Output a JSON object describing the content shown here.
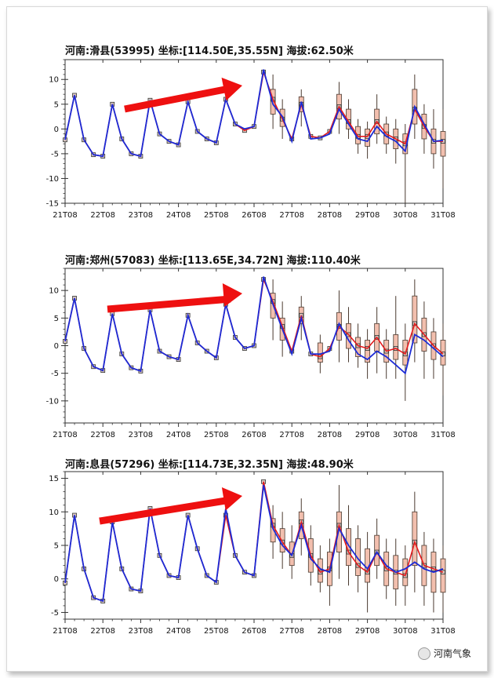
{
  "chart_data": [
    {
      "type": "line",
      "title": "河南:滑县(53995)  坐标:[114.50E,35.55N]  海拔:62.50米",
      "x_tick_labels": [
        "21T08",
        "22T08",
        "23T08",
        "24T08",
        "25T08",
        "26T08",
        "27T08",
        "28T08",
        "29T08",
        "30T08",
        "31T08"
      ],
      "y_ticks": [
        -15,
        -10,
        -5,
        0,
        5,
        10
      ],
      "ylim": [
        -15,
        14
      ],
      "x": [
        21.0,
        21.25,
        21.5,
        21.75,
        22.0,
        22.25,
        22.5,
        22.75,
        23.0,
        23.25,
        23.5,
        23.75,
        24.0,
        24.25,
        24.5,
        24.75,
        25.0,
        25.25,
        25.5,
        25.75,
        26.0,
        26.25,
        26.5,
        26.75,
        27.0,
        27.25,
        27.5,
        27.75,
        28.0,
        28.25,
        28.5,
        28.75,
        29.0,
        29.25,
        29.5,
        29.75,
        30.0,
        30.25,
        30.5,
        30.75,
        31.0
      ],
      "series": [
        {
          "values": [
            -2.2,
            6.8,
            -2.2,
            -5.2,
            -5.5,
            5.0,
            -2.0,
            -5.0,
            -5.5,
            5.8,
            -1.0,
            -2.5,
            -3.2,
            5.5,
            -0.5,
            -2.0,
            -2.8,
            6.0,
            1.0,
            -0.3,
            0.5,
            11.5,
            6.0,
            2.0,
            -2.0,
            5.0,
            -1.5,
            -1.8,
            -0.5,
            4.5,
            1.5,
            -1.5,
            -1.5,
            1.5,
            -1.0,
            -2.0,
            -3.0,
            4.0,
            0.5,
            -2.5,
            -2.5
          ]
        },
        {
          "values": [
            -2.2,
            6.8,
            -2.2,
            -5.2,
            -5.5,
            5.0,
            -2.0,
            -5.0,
            -5.5,
            5.8,
            -1.0,
            -2.5,
            -3.2,
            5.5,
            -0.5,
            -2.0,
            -2.8,
            6.0,
            1.0,
            0.0,
            0.5,
            12.0,
            5.0,
            2.5,
            -2.5,
            5.5,
            -2.0,
            -1.8,
            -1.0,
            4.0,
            1.0,
            -2.0,
            -2.5,
            0.5,
            -1.5,
            -2.5,
            -4.5,
            4.5,
            1.0,
            -2.5,
            -2.3
          ]
        }
      ],
      "boxes": [
        {
          "x": 26.5,
          "q1": 3.0,
          "q3": 8.0,
          "lo": 0.0,
          "hi": 11.0
        },
        {
          "x": 26.75,
          "q1": 0.5,
          "q3": 4.0,
          "lo": -2.0,
          "hi": 6.0
        },
        {
          "x": 27.25,
          "q1": 3.5,
          "q3": 6.5,
          "lo": 0.5,
          "hi": 8.0
        },
        {
          "x": 28.25,
          "q1": 2.0,
          "q3": 7.0,
          "lo": -1.0,
          "hi": 9.5
        },
        {
          "x": 28.5,
          "q1": 0.0,
          "q3": 4.0,
          "lo": -2.0,
          "hi": 6.0
        },
        {
          "x": 28.75,
          "q1": -3.0,
          "q3": 0.5,
          "lo": -5.0,
          "hi": 2.0
        },
        {
          "x": 29.0,
          "q1": -3.5,
          "q3": 0.0,
          "lo": -6.0,
          "hi": 1.5
        },
        {
          "x": 29.25,
          "q1": -1.0,
          "q3": 4.0,
          "lo": -3.0,
          "hi": 7.0
        },
        {
          "x": 29.5,
          "q1": -3.0,
          "q3": 1.0,
          "lo": -5.0,
          "hi": 2.5
        },
        {
          "x": 29.75,
          "q1": -4.0,
          "q3": 0.0,
          "lo": -7.0,
          "hi": 2.0
        },
        {
          "x": 30.0,
          "q1": -5.0,
          "q3": -1.0,
          "lo": -15.0,
          "hi": 1.0
        },
        {
          "x": 30.25,
          "q1": 1.0,
          "q3": 8.0,
          "lo": -2.0,
          "hi": 11.0
        },
        {
          "x": 30.5,
          "q1": -2.0,
          "q3": 3.0,
          "lo": -5.0,
          "hi": 5.0
        },
        {
          "x": 30.75,
          "q1": -5.0,
          "q3": 0.0,
          "lo": -8.0,
          "hi": 4.0
        },
        {
          "x": 31.0,
          "q1": -5.5,
          "q3": -0.5,
          "lo": -12.0,
          "hi": 4.0
        }
      ]
    },
    {
      "type": "line",
      "title": "河南:郑州(57083)  坐标:[113.65E,34.72N]  海拔:110.40米",
      "x_tick_labels": [
        "21T08",
        "22T08",
        "23T08",
        "24T08",
        "25T08",
        "26T08",
        "27T08",
        "28T08",
        "29T08",
        "30T08",
        "31T08"
      ],
      "y_ticks": [
        -10,
        -5,
        0,
        5,
        10
      ],
      "ylim": [
        -14,
        14
      ],
      "x": [
        21.0,
        21.25,
        21.5,
        21.75,
        22.0,
        22.25,
        22.5,
        22.75,
        23.0,
        23.25,
        23.5,
        23.75,
        24.0,
        24.25,
        24.5,
        24.75,
        25.0,
        25.25,
        25.5,
        25.75,
        26.0,
        26.25,
        26.5,
        26.75,
        27.0,
        27.25,
        27.5,
        27.75,
        28.0,
        28.25,
        28.5,
        28.75,
        29.0,
        29.25,
        29.5,
        29.75,
        30.0,
        30.25,
        30.5,
        30.75,
        31.0
      ],
      "series": [
        {
          "values": [
            0.8,
            8.6,
            -0.5,
            -3.8,
            -4.5,
            5.8,
            -1.5,
            -4.0,
            -4.6,
            6.5,
            -1.0,
            -2.0,
            -2.5,
            5.5,
            0.5,
            -1.0,
            -2.2,
            7.5,
            1.5,
            -0.5,
            0.0,
            12.0,
            8.0,
            3.5,
            -1.0,
            5.5,
            -1.5,
            -2.0,
            -0.5,
            3.5,
            2.0,
            0.0,
            -0.5,
            1.5,
            -1.0,
            -0.5,
            -1.5,
            4.0,
            2.0,
            0.0,
            -1.5
          ]
        },
        {
          "values": [
            0.8,
            8.6,
            -0.5,
            -3.8,
            -4.5,
            5.8,
            -1.5,
            -4.0,
            -4.6,
            6.5,
            -1.0,
            -2.0,
            -2.5,
            5.5,
            0.5,
            -1.0,
            -2.2,
            7.5,
            1.5,
            -0.5,
            0.0,
            12.5,
            7.5,
            3.0,
            -1.5,
            5.0,
            -1.5,
            -1.5,
            -1.0,
            4.0,
            1.0,
            -1.5,
            -2.5,
            -1.0,
            -2.0,
            -3.5,
            -5.0,
            2.0,
            1.0,
            -0.5,
            -2.0
          ]
        }
      ],
      "boxes": [
        {
          "x": 26.5,
          "q1": 5.0,
          "q3": 9.5,
          "lo": 1.0,
          "hi": 12.0
        },
        {
          "x": 26.75,
          "q1": 1.0,
          "q3": 5.0,
          "lo": -2.0,
          "hi": 8.0
        },
        {
          "x": 27.25,
          "q1": 4.0,
          "q3": 7.0,
          "lo": 1.0,
          "hi": 9.0
        },
        {
          "x": 27.75,
          "q1": -3.0,
          "q3": 0.5,
          "lo": -5.0,
          "hi": 2.0
        },
        {
          "x": 28.25,
          "q1": 1.0,
          "q3": 6.0,
          "lo": -3.0,
          "hi": 10.0
        },
        {
          "x": 28.5,
          "q1": -0.5,
          "q3": 4.0,
          "lo": -3.0,
          "hi": 7.0
        },
        {
          "x": 28.75,
          "q1": -2.0,
          "q3": 1.5,
          "lo": -4.0,
          "hi": 4.0
        },
        {
          "x": 29.0,
          "q1": -3.0,
          "q3": 1.0,
          "lo": -6.0,
          "hi": 3.0
        },
        {
          "x": 29.25,
          "q1": -1.0,
          "q3": 4.0,
          "lo": -5.0,
          "hi": 7.0
        },
        {
          "x": 29.5,
          "q1": -3.0,
          "q3": 1.0,
          "lo": -6.0,
          "hi": 3.0
        },
        {
          "x": 29.75,
          "q1": -2.5,
          "q3": 2.0,
          "lo": -6.0,
          "hi": 9.0
        },
        {
          "x": 30.0,
          "q1": -3.5,
          "q3": 1.0,
          "lo": -10.0,
          "hi": 4.0
        },
        {
          "x": 30.25,
          "q1": 0.5,
          "q3": 9.0,
          "lo": -3.0,
          "hi": 12.0
        },
        {
          "x": 30.5,
          "q1": -1.0,
          "q3": 5.0,
          "lo": -6.0,
          "hi": 8.0
        },
        {
          "x": 30.75,
          "q1": -2.5,
          "q3": 2.5,
          "lo": -6.0,
          "hi": 5.0
        },
        {
          "x": 31.0,
          "q1": -3.5,
          "q3": 1.0,
          "lo": -9.0,
          "hi": 4.0
        }
      ]
    },
    {
      "type": "line",
      "title": "河南:息县(57296)  坐标:[114.73E,32.35N]  海拔:48.90米",
      "x_tick_labels": [
        "21T08",
        "22T08",
        "23T08",
        "24T08",
        "25T08",
        "26T08",
        "27T08",
        "28T08",
        "29T08",
        "30T08",
        "31T08"
      ],
      "y_ticks": [
        -5,
        0,
        5,
        10,
        15
      ],
      "ylim": [
        -6,
        16
      ],
      "x": [
        21.0,
        21.25,
        21.5,
        21.75,
        22.0,
        22.25,
        22.5,
        22.75,
        23.0,
        23.25,
        23.5,
        23.75,
        24.0,
        24.25,
        24.5,
        24.75,
        25.0,
        25.25,
        25.5,
        25.75,
        26.0,
        26.25,
        26.5,
        26.75,
        27.0,
        27.25,
        27.5,
        27.75,
        28.0,
        28.25,
        28.5,
        28.75,
        29.0,
        29.25,
        29.5,
        29.75,
        30.0,
        30.25,
        30.5,
        30.75,
        31.0
      ],
      "series": [
        {
          "values": [
            -0.6,
            9.5,
            1.5,
            -2.8,
            -3.3,
            8.5,
            1.5,
            -1.5,
            -1.8,
            10.5,
            3.5,
            0.5,
            0.2,
            9.5,
            4.5,
            0.5,
            -0.5,
            9.5,
            3.5,
            1.0,
            0.5,
            14.5,
            8.0,
            5.5,
            3.5,
            8.5,
            3.5,
            1.0,
            1.5,
            8.0,
            4.0,
            2.0,
            1.0,
            4.0,
            1.5,
            1.0,
            0.5,
            5.5,
            2.0,
            1.5,
            1.0
          ]
        },
        {
          "values": [
            -0.6,
            9.5,
            1.5,
            -2.8,
            -3.3,
            8.5,
            1.5,
            -1.5,
            -1.8,
            10.5,
            3.5,
            0.5,
            0.2,
            9.5,
            4.5,
            0.5,
            -0.5,
            10.5,
            3.5,
            1.0,
            0.5,
            14.0,
            7.5,
            5.0,
            3.5,
            8.0,
            3.0,
            1.5,
            1.0,
            7.5,
            5.0,
            3.0,
            1.5,
            4.0,
            2.0,
            1.0,
            1.5,
            2.5,
            1.5,
            1.0,
            1.5
          ]
        }
      ],
      "boxes": [
        {
          "x": 26.5,
          "q1": 5.5,
          "q3": 9.0,
          "lo": 3.0,
          "hi": 11.0
        },
        {
          "x": 26.75,
          "q1": 4.0,
          "q3": 7.5,
          "lo": 1.5,
          "hi": 10.0
        },
        {
          "x": 27.0,
          "q1": 2.0,
          "q3": 5.5,
          "lo": 0.0,
          "hi": 8.0
        },
        {
          "x": 27.25,
          "q1": 6.0,
          "q3": 10.0,
          "lo": 3.5,
          "hi": 12.0
        },
        {
          "x": 27.5,
          "q1": 1.0,
          "q3": 6.0,
          "lo": -1.0,
          "hi": 8.0
        },
        {
          "x": 27.75,
          "q1": -0.5,
          "q3": 3.0,
          "lo": -2.0,
          "hi": 5.0
        },
        {
          "x": 28.0,
          "q1": -1.0,
          "q3": 4.0,
          "lo": -4.0,
          "hi": 6.0
        },
        {
          "x": 28.25,
          "q1": 4.0,
          "q3": 10.0,
          "lo": 0.0,
          "hi": 14.0
        },
        {
          "x": 28.5,
          "q1": 2.0,
          "q3": 7.5,
          "lo": -1.0,
          "hi": 11.0
        },
        {
          "x": 28.75,
          "q1": 0.5,
          "q3": 6.0,
          "lo": -2.0,
          "hi": 8.0
        },
        {
          "x": 29.0,
          "q1": -0.5,
          "q3": 4.5,
          "lo": -5.0,
          "hi": 7.0
        },
        {
          "x": 29.25,
          "q1": 2.0,
          "q3": 6.5,
          "lo": 0.0,
          "hi": 9.0
        },
        {
          "x": 29.5,
          "q1": -1.0,
          "q3": 4.0,
          "lo": -3.0,
          "hi": 6.0
        },
        {
          "x": 29.75,
          "q1": -1.5,
          "q3": 3.5,
          "lo": -4.0,
          "hi": 6.0
        },
        {
          "x": 30.0,
          "q1": -1.0,
          "q3": 3.0,
          "lo": -4.0,
          "hi": 5.0
        },
        {
          "x": 30.25,
          "q1": 2.0,
          "q3": 10.0,
          "lo": -2.0,
          "hi": 13.0
        },
        {
          "x": 30.5,
          "q1": -1.0,
          "q3": 5.0,
          "lo": -4.0,
          "hi": 7.0
        },
        {
          "x": 30.75,
          "q1": -2.0,
          "q3": 4.0,
          "lo": -5.0,
          "hi": 6.0
        },
        {
          "x": 31.0,
          "q1": -2.0,
          "q3": 3.0,
          "lo": -5.0,
          "hi": 5.0
        }
      ]
    }
  ],
  "colors": {
    "series_a": "#e41a1c",
    "series_b": "#1c2bd6",
    "box_fill": "#f2bfae",
    "box_edge": "#4a3a30",
    "arrow": "#ee1010"
  },
  "watermark": {
    "text": "河南气象"
  }
}
